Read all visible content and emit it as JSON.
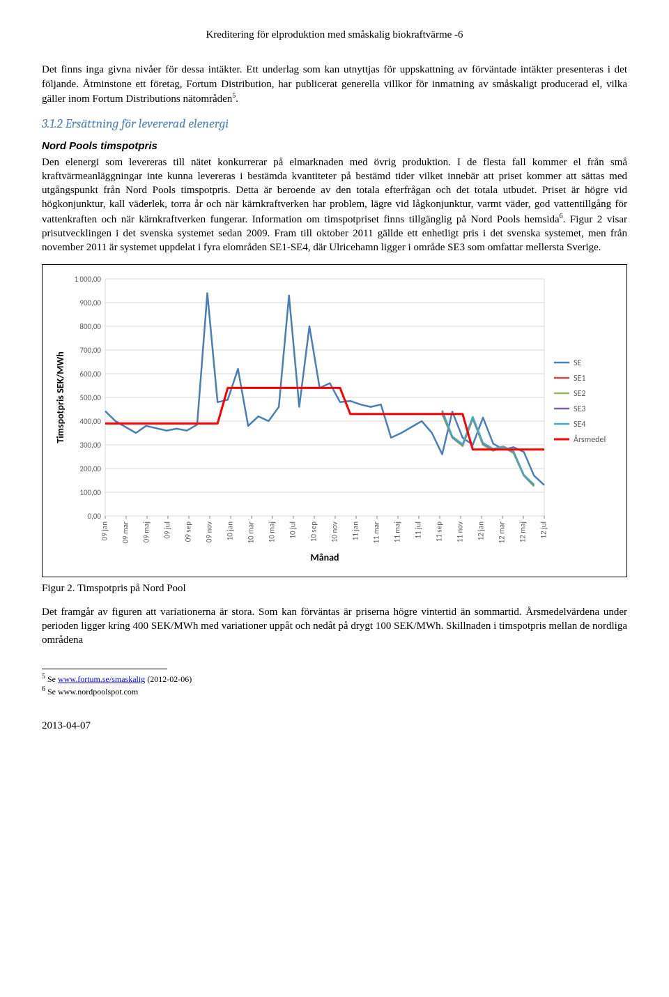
{
  "header": "Kreditering för elproduktion med småskalig biokraftvärme -6",
  "para1": "Det finns inga givna nivåer för dessa intäkter. Ett underlag som kan utnyttjas för uppskattning av förväntade intäkter presenteras i det följande. Åtminstone ett företag, Fortum Distribution, har publicerat generella villkor för inmatning av småskaligt producerad el, vilka gäller inom Fortum Distributions nätområden",
  "para1_sup": "5",
  "para1_tail": ".",
  "heading": "3.1.2 Ersättning för levererad elenergi",
  "subheading": "Nord Pools timspotpris",
  "para2_a": "Den elenergi som levereras till nätet konkurrerar på elmarknaden med övrig produktion. I de flesta fall kommer el från små kraftvärmeanläggningar inte kunna levereras i bestämda kvantiteter på bestämd tider vilket innebär att priset kommer att sättas med utgångspunkt från Nord Pools timspotpris. Detta är beroende av den totala efterfrågan och det totala utbudet. Priset är högre vid högkonjunktur, kall väderlek, torra år och när kärnkraftverken har problem, lägre vid lågkonjunktur, varmt väder, god vattentillgång för vattenkraften och när kärnkraftverken fungerar. Information om timspotpriset finns tillgänglig på Nord Pools hemsida",
  "para2_sup": "6",
  "para2_b": ". Figur 2 visar prisutvecklingen i det svenska systemet sedan 2009. Fram till oktober 2011 gällde ett enhetligt pris i det svenska systemet, men från november 2011 är systemet uppdelat i fyra elområden SE1-SE4, där Ulricehamn ligger i område SE3 som omfattar mellersta Sverige.",
  "figure_caption": "Figur 2. Timspotpris på Nord Pool",
  "para3": "Det framgår av figuren att variationerna är stora. Som kan förväntas är priserna högre vintertid än sommartid. Årsmedelvärdena under perioden ligger kring 400 SEK/MWh med variationer uppåt och nedåt på drygt 100 SEK/MWh. Skillnaden i timspotpris mellan de nordliga områdena",
  "footnote5_pre": "5",
  "footnote5_a": " Se ",
  "footnote5_link": "www.fortum.se/smaskalig",
  "footnote5_b": " (2012-02-06)",
  "footnote6_pre": "6",
  "footnote6": " Se www.nordpoolspot.com",
  "date": "2013-04-07",
  "chart": {
    "type": "line",
    "ylabel": "Timspotpris SEK/MWh",
    "xlabel": "Månad",
    "ylabel_fontsize": 14,
    "xlabel_fontsize": 14,
    "tick_fontsize": 11,
    "font_family": "Calibri, Arial, sans-serif",
    "background": "#ffffff",
    "grid_color": "#d9d9d9",
    "axis_color": "#808080",
    "ylim": [
      0,
      1000
    ],
    "ytick_step": 100,
    "yticks": [
      "0,00",
      "100,00",
      "200,00",
      "300,00",
      "400,00",
      "500,00",
      "600,00",
      "700,00",
      "800,00",
      "900,00",
      "1 000,00"
    ],
    "xticks": [
      "09 jan",
      "09 mar",
      "09 maj",
      "09 jul",
      "09 sep",
      "09 nov",
      "10 jan",
      "10 mar",
      "10 maj",
      "10 jul",
      "10 sep",
      "10 nov",
      "11 jan",
      "11 mar",
      "11 maj",
      "11 jul",
      "11 sep",
      "11 nov",
      "12 jan",
      "12 mar",
      "12 maj",
      "12 jul"
    ],
    "line_width": 2.5,
    "series": [
      {
        "name": "SE",
        "color": "#4a7ebb",
        "values": [
          442,
          400,
          375,
          350,
          380,
          370,
          360,
          368,
          360,
          385,
          940,
          480,
          490,
          620,
          380,
          420,
          400,
          460,
          930,
          460,
          800,
          540,
          560,
          480,
          485,
          470,
          460,
          470,
          330,
          350,
          375,
          400,
          350,
          260,
          440,
          330,
          300,
          415,
          305,
          280,
          290,
          270,
          170,
          130
        ]
      },
      {
        "name": "SE1",
        "color": "#be4b48",
        "values": [
          null,
          null,
          null,
          null,
          null,
          null,
          null,
          null,
          null,
          null,
          null,
          null,
          null,
          null,
          null,
          null,
          null,
          null,
          null,
          null,
          null,
          null,
          null,
          null,
          null,
          null,
          null,
          null,
          null,
          null,
          null,
          null,
          null,
          430,
          330,
          295,
          410,
          300,
          275,
          290,
          265,
          170,
          125,
          null
        ]
      },
      {
        "name": "SE2",
        "color": "#98b954",
        "values": [
          null,
          null,
          null,
          null,
          null,
          null,
          null,
          null,
          null,
          null,
          null,
          null,
          null,
          null,
          null,
          null,
          null,
          null,
          null,
          null,
          null,
          null,
          null,
          null,
          null,
          null,
          null,
          null,
          null,
          null,
          null,
          null,
          null,
          430,
          330,
          295,
          410,
          300,
          275,
          290,
          265,
          170,
          125,
          null
        ]
      },
      {
        "name": "SE3",
        "color": "#7d60a0",
        "values": [
          null,
          null,
          null,
          null,
          null,
          null,
          null,
          null,
          null,
          null,
          null,
          null,
          null,
          null,
          null,
          null,
          null,
          null,
          null,
          null,
          null,
          null,
          null,
          null,
          null,
          null,
          null,
          null,
          null,
          null,
          null,
          null,
          null,
          440,
          332,
          300,
          415,
          305,
          280,
          292,
          270,
          172,
          130,
          null
        ]
      },
      {
        "name": "SE4",
        "color": "#46aac5",
        "values": [
          null,
          null,
          null,
          null,
          null,
          null,
          null,
          null,
          null,
          null,
          null,
          null,
          null,
          null,
          null,
          null,
          null,
          null,
          null,
          null,
          null,
          null,
          null,
          null,
          null,
          null,
          null,
          null,
          null,
          null,
          null,
          null,
          null,
          445,
          335,
          302,
          418,
          308,
          283,
          293,
          272,
          173,
          132,
          null
        ]
      },
      {
        "name": "Årsmedel",
        "color": "#ff0000",
        "width": 3,
        "values": [
          390,
          390,
          390,
          390,
          390,
          390,
          390,
          390,
          390,
          390,
          390,
          390,
          540,
          540,
          540,
          540,
          540,
          540,
          540,
          540,
          540,
          540,
          540,
          540,
          430,
          430,
          430,
          430,
          430,
          430,
          430,
          430,
          430,
          430,
          430,
          430,
          280,
          280,
          280,
          280,
          280,
          280,
          280,
          280
        ]
      }
    ],
    "legend_fontsize": 12
  }
}
